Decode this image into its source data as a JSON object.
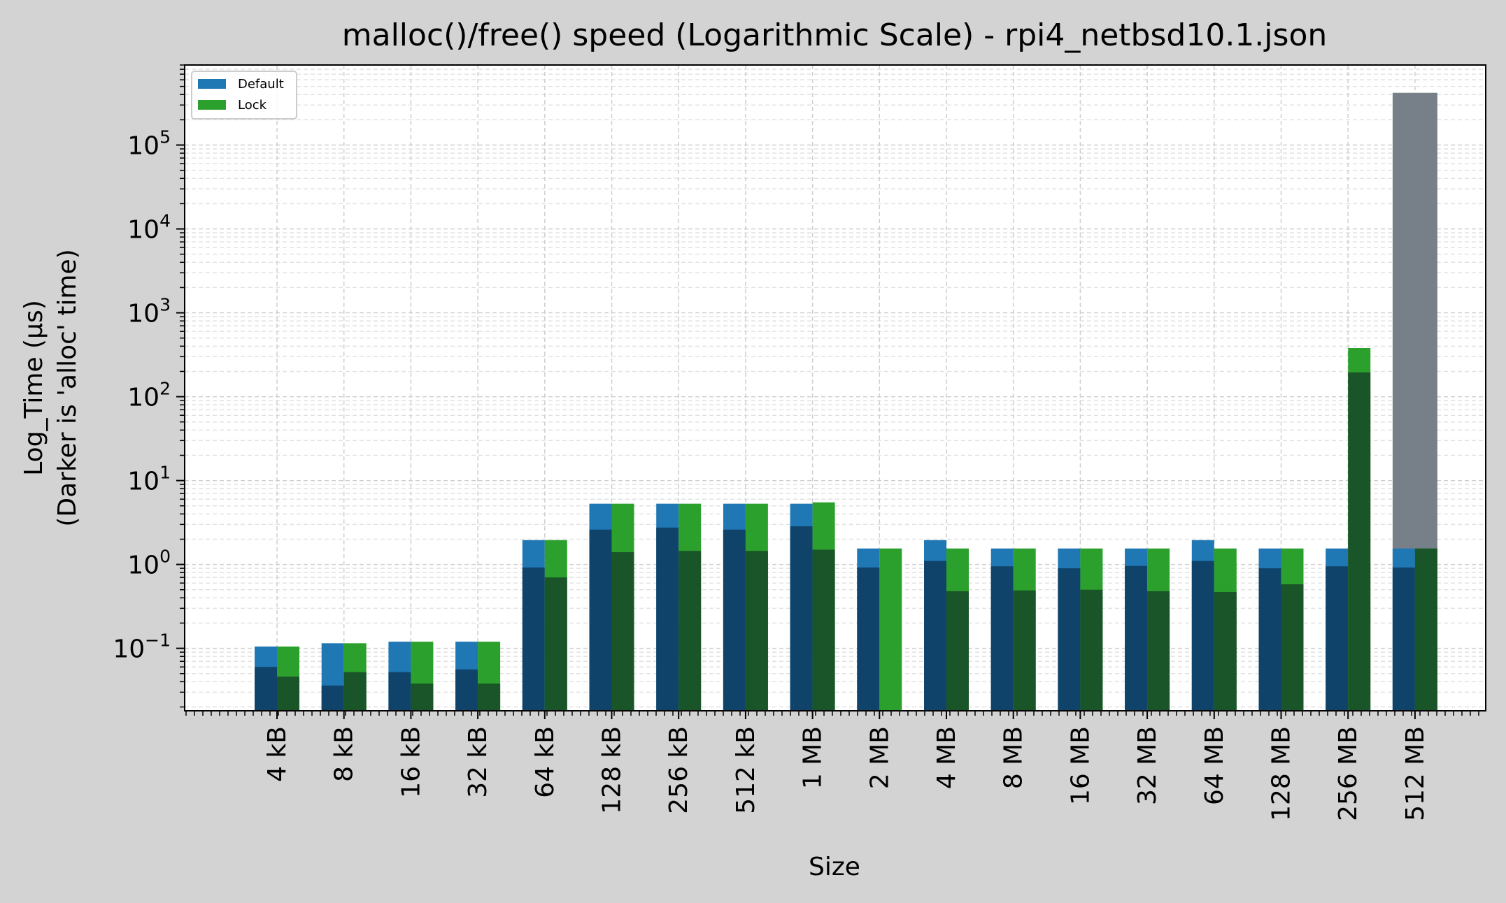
{
  "chart_data": {
    "type": "bar",
    "title": "malloc()/free() speed (Logarithmic Scale) - rpi4_netbsd10.1.json",
    "xlabel": "Size",
    "ylabel_lines": [
      "Log_Time (µs)",
      "(Darker is 'alloc' time)"
    ],
    "yscale": "log",
    "ylim": [
      0.018,
      900000
    ],
    "yticks": [
      {
        "value": 0.1,
        "base": "10",
        "exp": "−1"
      },
      {
        "value": 1,
        "base": "10",
        "exp": "0"
      },
      {
        "value": 10,
        "base": "10",
        "exp": "1"
      },
      {
        "value": 100,
        "base": "10",
        "exp": "2"
      },
      {
        "value": 1000,
        "base": "10",
        "exp": "3"
      },
      {
        "value": 10000,
        "base": "10",
        "exp": "4"
      },
      {
        "value": 100000,
        "base": "10",
        "exp": "5"
      }
    ],
    "grid": true,
    "legend_position": "top-left",
    "categories": [
      "4 kB",
      "8 kB",
      "16 kB",
      "32 kB",
      "64 kB",
      "128 kB",
      "256 kB",
      "512 kB",
      "1 MB",
      "2 MB",
      "4 MB",
      "8 MB",
      "16 MB",
      "32 MB",
      "64 MB",
      "128 MB",
      "256 MB",
      "512 MB"
    ],
    "series": [
      {
        "name": "Default",
        "color": "#1f77b4",
        "alloc_color": "#0f436a",
        "total": [
          0.105,
          0.115,
          0.12,
          0.12,
          1.95,
          5.3,
          5.3,
          5.3,
          5.3,
          1.55,
          1.95,
          1.55,
          1.55,
          1.55,
          1.95,
          1.55,
          1.55,
          1.55
        ],
        "alloc": [
          0.06,
          0.036,
          0.052,
          0.056,
          0.92,
          2.6,
          2.75,
          2.6,
          2.85,
          0.92,
          1.1,
          0.95,
          0.9,
          0.96,
          1.1,
          0.9,
          0.95,
          0.92
        ]
      },
      {
        "name": "Lock",
        "color": "#2ca02c",
        "alloc_color": "#1a5429",
        "total": [
          0.105,
          0.115,
          0.12,
          0.12,
          1.95,
          5.3,
          5.3,
          5.3,
          5.5,
          1.55,
          1.55,
          1.55,
          1.55,
          1.55,
          1.55,
          1.55,
          380,
          1.55
        ],
        "alloc": [
          0.046,
          0.052,
          0.038,
          0.038,
          0.7,
          1.4,
          1.45,
          1.45,
          1.5,
          null,
          0.48,
          0.49,
          0.5,
          0.48,
          0.47,
          0.58,
          195,
          1.55
        ]
      }
    ],
    "outlier": {
      "category": "512 MB",
      "value": 420000,
      "color": "#778088"
    }
  }
}
